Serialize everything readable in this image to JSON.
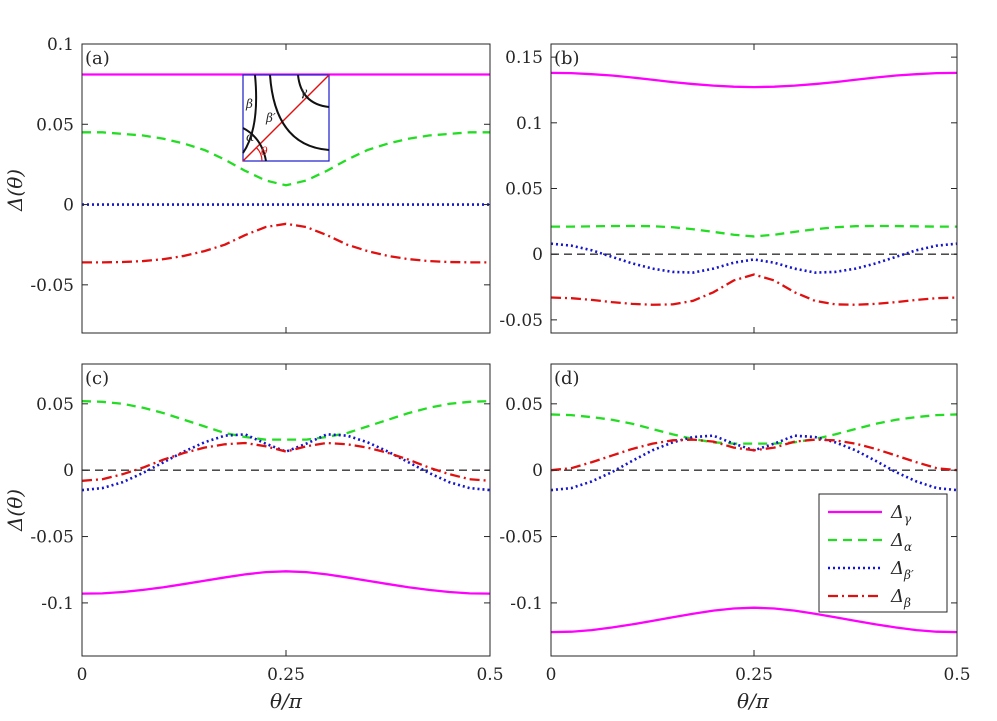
{
  "figure": {
    "x_axis_label": "θ/π",
    "y_axis_label": "Δ(θ)",
    "legend": {
      "entries": [
        {
          "label": "Δ",
          "sub": "γ",
          "series_key": "gamma"
        },
        {
          "label": "Δ",
          "sub": "α",
          "series_key": "alpha"
        },
        {
          "label": "Δ",
          "sub": "β′",
          "series_key": "betap"
        },
        {
          "label": "Δ",
          "sub": "β",
          "series_key": "beta"
        }
      ]
    },
    "inset": {
      "labels": [
        "γ",
        "β",
        "β′",
        "α",
        "θ"
      ]
    }
  },
  "colors": {
    "gamma": "#ff00ff",
    "alpha": "#22dd22",
    "betap": "#1515cc",
    "beta": "#e01010",
    "zero": "#333333",
    "axes": "#262626"
  },
  "chart_data": [
    {
      "panel_label": "(a)",
      "type": "line",
      "xlabel": "",
      "ylabel": "Δ(θ)",
      "xlim": [
        0,
        0.5
      ],
      "ylim": [
        -0.08,
        0.1
      ],
      "xticks": [
        0,
        0.25,
        0.5
      ],
      "xtick_labels": [
        "",
        "",
        ""
      ],
      "yticks": [
        -0.05,
        0,
        0.05,
        0.1
      ],
      "ytick_labels": [
        "-0.05",
        "0",
        "0.05",
        "0.1"
      ],
      "zero_line": false,
      "x": [
        0,
        0.025,
        0.05,
        0.075,
        0.1,
        0.125,
        0.15,
        0.175,
        0.2,
        0.225,
        0.25,
        0.275,
        0.3,
        0.325,
        0.35,
        0.375,
        0.4,
        0.425,
        0.45,
        0.475,
        0.5
      ],
      "series": [
        {
          "name": "Δγ",
          "key": "gamma",
          "values": [
            0.081,
            0.081,
            0.081,
            0.081,
            0.081,
            0.081,
            0.081,
            0.081,
            0.081,
            0.081,
            0.081,
            0.081,
            0.081,
            0.081,
            0.081,
            0.081,
            0.081,
            0.081,
            0.081,
            0.081,
            0.081
          ]
        },
        {
          "name": "Δα",
          "key": "alpha",
          "values": [
            0.045,
            0.045,
            0.044,
            0.043,
            0.041,
            0.038,
            0.034,
            0.028,
            0.021,
            0.015,
            0.012,
            0.015,
            0.021,
            0.028,
            0.034,
            0.038,
            0.041,
            0.043,
            0.044,
            0.045,
            0.045
          ]
        },
        {
          "name": "Δβ′",
          "key": "betap",
          "values": [
            0,
            0,
            0,
            0,
            0,
            0,
            0,
            0,
            0,
            0,
            0,
            0,
            0,
            0,
            0,
            0,
            0,
            0,
            0,
            0,
            0
          ]
        },
        {
          "name": "Δβ",
          "key": "beta",
          "values": [
            -0.036,
            -0.036,
            -0.0358,
            -0.0352,
            -0.034,
            -0.032,
            -0.029,
            -0.025,
            -0.019,
            -0.014,
            -0.012,
            -0.014,
            -0.019,
            -0.025,
            -0.029,
            -0.032,
            -0.034,
            -0.0352,
            -0.0358,
            -0.036,
            -0.036
          ]
        }
      ]
    },
    {
      "panel_label": "(b)",
      "type": "line",
      "xlabel": "",
      "ylabel": "",
      "xlim": [
        0,
        0.5
      ],
      "ylim": [
        -0.06,
        0.16
      ],
      "xticks": [
        0,
        0.25,
        0.5
      ],
      "xtick_labels": [
        "",
        "",
        ""
      ],
      "yticks": [
        -0.05,
        0,
        0.05,
        0.1,
        0.15
      ],
      "ytick_labels": [
        "-0.05",
        "0",
        "0.05",
        "0.1",
        "0.15"
      ],
      "zero_line": true,
      "x": [
        0,
        0.025,
        0.05,
        0.075,
        0.1,
        0.125,
        0.15,
        0.175,
        0.2,
        0.225,
        0.25,
        0.275,
        0.3,
        0.325,
        0.35,
        0.375,
        0.4,
        0.425,
        0.45,
        0.475,
        0.5
      ],
      "series": [
        {
          "name": "Δγ",
          "key": "gamma",
          "values": [
            0.138,
            0.1378,
            0.137,
            0.136,
            0.1345,
            0.1328,
            0.131,
            0.1295,
            0.1283,
            0.1275,
            0.1272,
            0.1275,
            0.1283,
            0.1295,
            0.131,
            0.1328,
            0.1345,
            0.136,
            0.137,
            0.1378,
            0.138
          ]
        },
        {
          "name": "Δα",
          "key": "alpha",
          "values": [
            0.021,
            0.021,
            0.0212,
            0.0214,
            0.0215,
            0.0213,
            0.0205,
            0.019,
            0.017,
            0.0148,
            0.0135,
            0.0148,
            0.017,
            0.019,
            0.0205,
            0.0213,
            0.0215,
            0.0214,
            0.0212,
            0.021,
            0.021
          ]
        },
        {
          "name": "Δβ′",
          "key": "betap",
          "values": [
            0.008,
            0.0065,
            0.003,
            -0.002,
            -0.007,
            -0.011,
            -0.0135,
            -0.014,
            -0.011,
            -0.0065,
            -0.004,
            -0.0065,
            -0.011,
            -0.014,
            -0.0135,
            -0.011,
            -0.007,
            -0.002,
            0.003,
            0.0065,
            0.008
          ]
        },
        {
          "name": "Δβ",
          "key": "beta",
          "values": [
            -0.033,
            -0.0335,
            -0.0348,
            -0.0365,
            -0.0378,
            -0.0385,
            -0.0382,
            -0.0355,
            -0.029,
            -0.02,
            -0.0155,
            -0.02,
            -0.029,
            -0.0355,
            -0.0382,
            -0.0385,
            -0.0378,
            -0.0365,
            -0.0348,
            -0.0335,
            -0.033
          ]
        }
      ]
    },
    {
      "panel_label": "(c)",
      "type": "line",
      "xlabel": "θ/π",
      "ylabel": "Δ(θ)",
      "xlim": [
        0,
        0.5
      ],
      "ylim": [
        -0.14,
        0.08
      ],
      "xticks": [
        0,
        0.25,
        0.5
      ],
      "xtick_labels": [
        "0",
        "0.25",
        "0.5"
      ],
      "yticks": [
        -0.1,
        -0.05,
        0,
        0.05
      ],
      "ytick_labels": [
        "-0.1",
        "-0.05",
        "0",
        "0.05"
      ],
      "zero_line": true,
      "x": [
        0,
        0.025,
        0.05,
        0.075,
        0.1,
        0.125,
        0.15,
        0.175,
        0.2,
        0.225,
        0.25,
        0.275,
        0.3,
        0.325,
        0.35,
        0.375,
        0.4,
        0.425,
        0.45,
        0.475,
        0.5
      ],
      "series": [
        {
          "name": "Δγ",
          "key": "gamma",
          "values": [
            -0.093,
            -0.0928,
            -0.0918,
            -0.0902,
            -0.0882,
            -0.0858,
            -0.0833,
            -0.0808,
            -0.0785,
            -0.0768,
            -0.0762,
            -0.0768,
            -0.0785,
            -0.0808,
            -0.0833,
            -0.0858,
            -0.0882,
            -0.0902,
            -0.0918,
            -0.0928,
            -0.093
          ]
        },
        {
          "name": "Δα",
          "key": "alpha",
          "values": [
            0.052,
            0.0515,
            0.05,
            0.047,
            0.043,
            0.038,
            0.033,
            0.028,
            0.025,
            0.023,
            0.023,
            0.023,
            0.025,
            0.028,
            0.033,
            0.038,
            0.043,
            0.047,
            0.05,
            0.0515,
            0.052
          ]
        },
        {
          "name": "Δβ′",
          "key": "betap",
          "values": [
            -0.015,
            -0.0135,
            -0.009,
            -0.002,
            0.006,
            0.014,
            0.021,
            0.026,
            0.027,
            0.02,
            0.014,
            0.02,
            0.027,
            0.026,
            0.021,
            0.014,
            0.006,
            -0.002,
            -0.009,
            -0.0135,
            -0.015
          ]
        },
        {
          "name": "Δβ",
          "key": "beta",
          "values": [
            -0.008,
            -0.0068,
            -0.003,
            0.002,
            0.008,
            0.013,
            0.017,
            0.0195,
            0.0205,
            0.018,
            0.014,
            0.018,
            0.0205,
            0.0195,
            0.017,
            0.013,
            0.008,
            0.002,
            -0.003,
            -0.0068,
            -0.008
          ]
        }
      ]
    },
    {
      "panel_label": "(d)",
      "type": "line",
      "xlabel": "θ/π",
      "ylabel": "",
      "xlim": [
        0,
        0.5
      ],
      "ylim": [
        -0.14,
        0.08
      ],
      "xticks": [
        0,
        0.25,
        0.5
      ],
      "xtick_labels": [
        "0",
        "0.25",
        "0.5"
      ],
      "yticks": [
        -0.1,
        -0.05,
        0,
        0.05
      ],
      "ytick_labels": [
        "-0.1",
        "-0.05",
        "0",
        "0.05"
      ],
      "zero_line": true,
      "x": [
        0,
        0.025,
        0.05,
        0.075,
        0.1,
        0.125,
        0.15,
        0.175,
        0.2,
        0.225,
        0.25,
        0.275,
        0.3,
        0.325,
        0.35,
        0.375,
        0.4,
        0.425,
        0.45,
        0.475,
        0.5
      ],
      "series": [
        {
          "name": "Δγ",
          "key": "gamma",
          "values": [
            -0.122,
            -0.1217,
            -0.1205,
            -0.1185,
            -0.1162,
            -0.1135,
            -0.1108,
            -0.1082,
            -0.1058,
            -0.1042,
            -0.1036,
            -0.1042,
            -0.1058,
            -0.1082,
            -0.1108,
            -0.1135,
            -0.1162,
            -0.1185,
            -0.1205,
            -0.1217,
            -0.122
          ]
        },
        {
          "name": "Δα",
          "key": "alpha",
          "values": [
            0.042,
            0.0415,
            0.04,
            0.038,
            0.035,
            0.031,
            0.027,
            0.0235,
            0.021,
            0.02,
            0.02,
            0.02,
            0.021,
            0.0235,
            0.027,
            0.031,
            0.035,
            0.038,
            0.04,
            0.0415,
            0.042
          ]
        },
        {
          "name": "Δβ′",
          "key": "betap",
          "values": [
            -0.015,
            -0.0135,
            -0.0085,
            -0.0015,
            0.007,
            0.015,
            0.021,
            0.025,
            0.026,
            0.02,
            0.015,
            0.02,
            0.026,
            0.025,
            0.021,
            0.015,
            0.007,
            -0.0015,
            -0.0085,
            -0.0135,
            -0.015
          ]
        },
        {
          "name": "Δβ",
          "key": "beta",
          "values": [
            0,
            0.0015,
            0.006,
            0.011,
            0.016,
            0.02,
            0.0225,
            0.023,
            0.0215,
            0.017,
            0.015,
            0.017,
            0.0215,
            0.023,
            0.0225,
            0.02,
            0.016,
            0.011,
            0.006,
            0.0015,
            0
          ]
        }
      ]
    }
  ]
}
